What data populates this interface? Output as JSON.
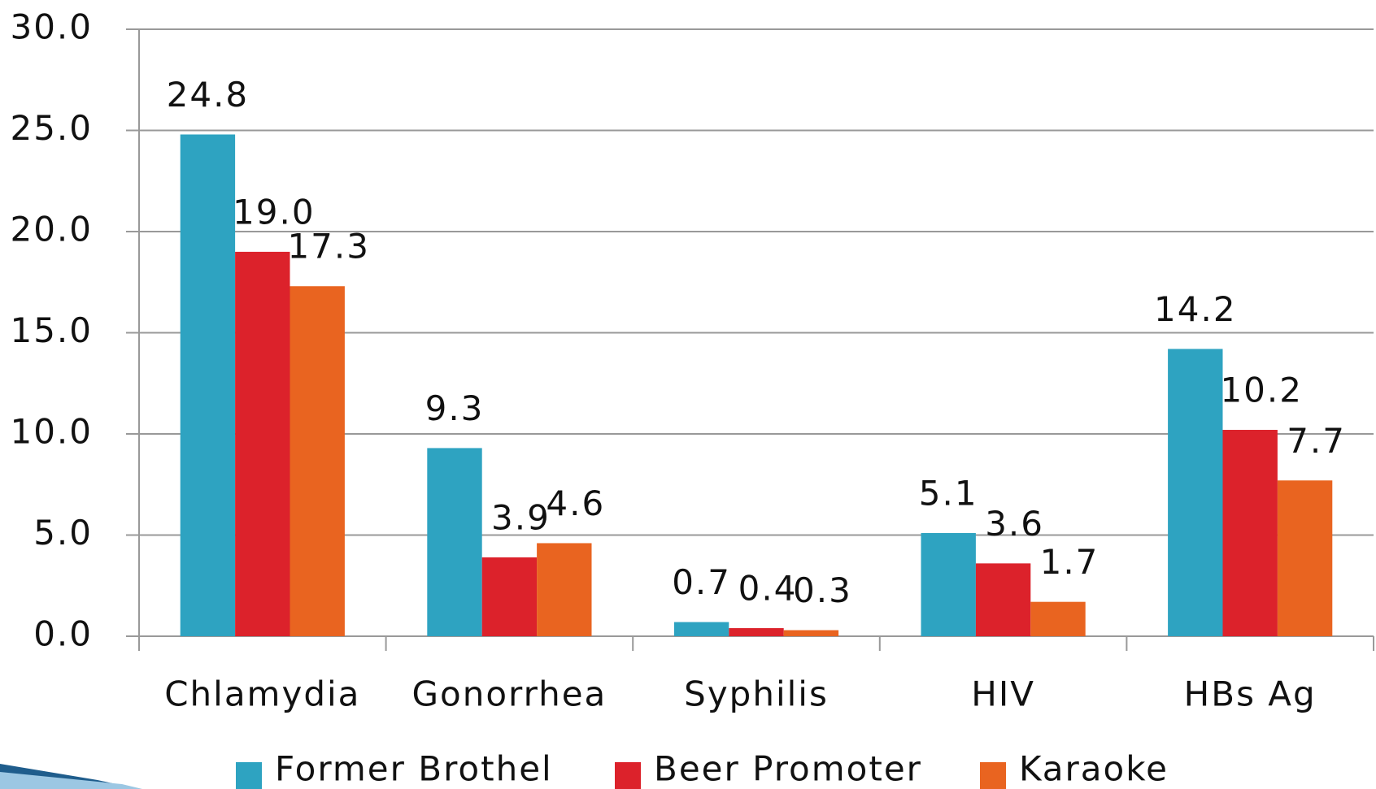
{
  "chart_data": {
    "type": "bar",
    "categories": [
      "Chlamydia",
      "Gonorrhea",
      "Syphilis",
      "HIV",
      "HBs Ag"
    ],
    "series": [
      {
        "name": "Former Brothel",
        "color": "#2ea3c1",
        "values": [
          24.8,
          9.3,
          0.7,
          5.1,
          14.2
        ],
        "value_labels": [
          "24.8",
          "9.3",
          "0.7",
          "5.1",
          "14.2"
        ]
      },
      {
        "name": "Beer Promoter",
        "color": "#dc222b",
        "values": [
          19.0,
          3.9,
          0.4,
          3.6,
          10.2
        ],
        "value_labels": [
          "19.0",
          "3.9",
          "0.4",
          "3.6",
          "10.2"
        ]
      },
      {
        "name": "Karaoke",
        "color": "#e96420",
        "values": [
          17.3,
          4.6,
          0.3,
          1.7,
          7.7
        ],
        "value_labels": [
          "17.3",
          "4.6",
          "0.3",
          "1.7",
          "7.7"
        ]
      }
    ],
    "ylim": [
      0,
      30
    ],
    "yticks": [
      {
        "value": 0,
        "label": "0.0"
      },
      {
        "value": 5,
        "label": "5.0"
      },
      {
        "value": 10,
        "label": "10.0"
      },
      {
        "value": 15,
        "label": "15.0"
      },
      {
        "value": 20,
        "label": "20.0"
      },
      {
        "value": 25,
        "label": "25.0"
      },
      {
        "value": 30,
        "label": "30.0"
      }
    ],
    "grid": true,
    "legend": "bottom"
  }
}
